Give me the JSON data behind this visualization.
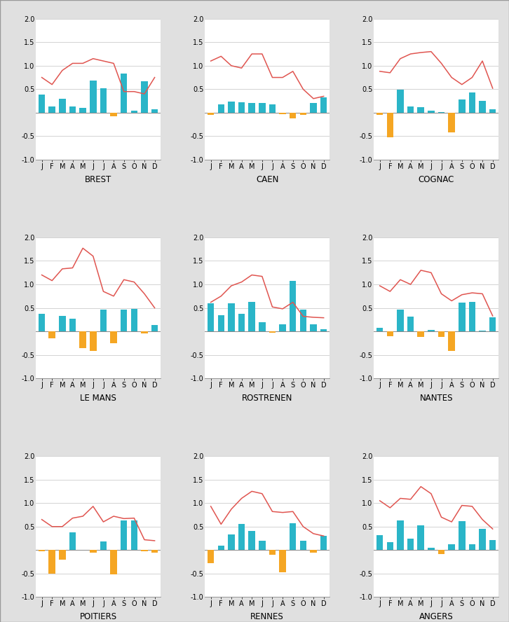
{
  "stations": [
    {
      "name": "BREST",
      "precip": [
        0.38,
        0.13,
        0.3,
        0.13,
        0.1,
        0.68,
        0.52,
        -0.08,
        0.83,
        0.05,
        0.67,
        0.07
      ],
      "temp": [
        0.75,
        0.6,
        0.9,
        1.05,
        1.05,
        1.15,
        1.1,
        1.05,
        0.45,
        0.45,
        0.4,
        0.75
      ]
    },
    {
      "name": "CAEN",
      "precip": [
        -0.05,
        0.18,
        0.23,
        0.22,
        0.2,
        0.2,
        0.18,
        -0.03,
        -0.12,
        -0.05,
        0.2,
        0.32
      ],
      "temp": [
        1.1,
        1.2,
        1.0,
        0.95,
        1.25,
        1.25,
        0.75,
        0.75,
        0.88,
        0.5,
        0.3,
        0.35
      ]
    },
    {
      "name": "COGNAC",
      "precip": [
        -0.05,
        -0.52,
        0.49,
        0.14,
        0.12,
        0.05,
        0.01,
        -0.42,
        0.28,
        0.43,
        0.25,
        0.07
      ],
      "temp": [
        0.88,
        0.85,
        1.15,
        1.25,
        1.28,
        1.3,
        1.05,
        0.75,
        0.6,
        0.75,
        1.1,
        0.52
      ]
    },
    {
      "name": "LE MANS",
      "precip": [
        0.37,
        -0.15,
        0.33,
        0.27,
        -0.35,
        -0.42,
        0.47,
        -0.25,
        0.47,
        0.48,
        -0.05,
        0.13
      ],
      "temp": [
        1.2,
        1.08,
        1.33,
        1.35,
        1.77,
        1.6,
        0.85,
        0.75,
        1.1,
        1.05,
        0.8,
        0.5
      ]
    },
    {
      "name": "ROSTRENEN",
      "precip": [
        0.6,
        0.35,
        0.6,
        0.38,
        0.63,
        0.2,
        -0.03,
        0.15,
        1.08,
        0.47,
        0.15,
        0.05
      ],
      "temp": [
        0.62,
        0.75,
        0.97,
        1.05,
        1.2,
        1.17,
        0.52,
        0.48,
        0.62,
        0.32,
        0.3,
        0.29
      ]
    },
    {
      "name": "NANTES",
      "precip": [
        0.08,
        -0.1,
        0.47,
        0.31,
        -0.12,
        0.03,
        -0.12,
        -0.42,
        0.62,
        0.63,
        0.02,
        0.3
      ],
      "temp": [
        0.97,
        0.85,
        1.1,
        1.0,
        1.3,
        1.25,
        0.8,
        0.65,
        0.78,
        0.82,
        0.8,
        0.33
      ]
    },
    {
      "name": "POITIERS",
      "precip": [
        -0.02,
        -0.5,
        -0.2,
        0.38,
        0.01,
        -0.05,
        0.19,
        -0.52,
        0.63,
        0.63,
        -0.03,
        -0.05
      ],
      "temp": [
        0.65,
        0.5,
        0.5,
        0.68,
        0.72,
        0.93,
        0.6,
        0.72,
        0.67,
        0.68,
        0.22,
        0.2
      ]
    },
    {
      "name": "RENNES",
      "precip": [
        -0.28,
        0.1,
        0.33,
        0.56,
        0.4,
        0.2,
        -0.1,
        -0.47,
        0.57,
        0.2,
        -0.05,
        0.3
      ],
      "temp": [
        0.93,
        0.55,
        0.87,
        1.1,
        1.25,
        1.2,
        0.82,
        0.8,
        0.82,
        0.5,
        0.35,
        0.3
      ]
    },
    {
      "name": "ANGERS",
      "precip": [
        0.32,
        0.17,
        0.63,
        0.25,
        0.52,
        0.05,
        -0.08,
        0.12,
        0.62,
        0.12,
        0.45,
        0.22
      ],
      "temp": [
        1.05,
        0.9,
        1.1,
        1.08,
        1.35,
        1.2,
        0.7,
        0.6,
        0.95,
        0.93,
        0.65,
        0.45
      ]
    }
  ],
  "months": [
    "J",
    "F",
    "M",
    "A",
    "M",
    "J",
    "J",
    "A",
    "S",
    "O",
    "N",
    "D"
  ],
  "cyan_color": "#2ab5c8",
  "orange_color": "#f5a623",
  "red_color": "#e05550",
  "bg_color": "#e0e0e0",
  "plot_bg": "#ffffff",
  "ylim": [
    -1.0,
    2.0
  ],
  "yticks": [
    -1.0,
    -0.5,
    0.0,
    0.5,
    1.0,
    1.5,
    2.0
  ],
  "grid_color": "#cccccc",
  "label_fontsize": 8.5,
  "tick_fontsize": 7,
  "bar_width": 0.65
}
